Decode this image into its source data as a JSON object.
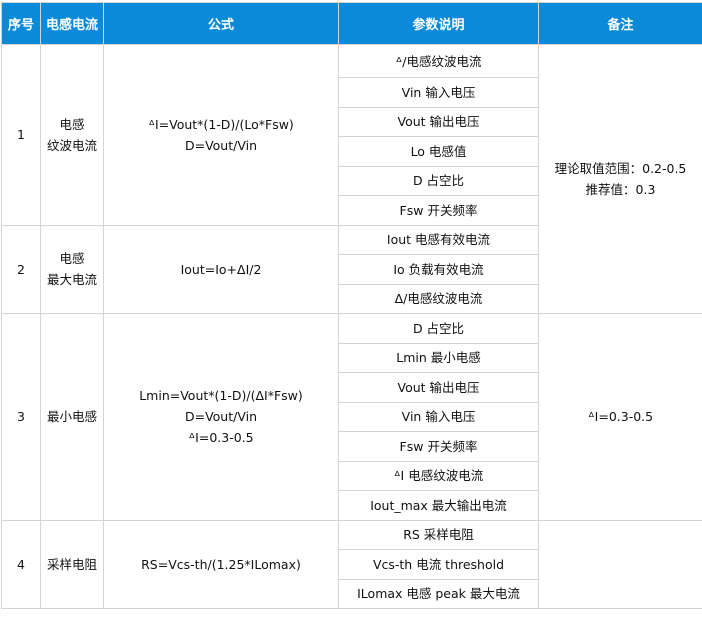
{
  "headers": [
    "序号",
    "电感电流",
    "公式",
    "参数说明",
    "备注"
  ],
  "rows": [
    {
      "no": "1",
      "name": [
        "电感",
        "纹波电流"
      ],
      "formula": [
        "ᐞI=Vout*(1-D)/(Lo*Fsw)",
        "D=Vout/Vin"
      ],
      "params": [
        "ᐞ/电感纹波电流",
        "Vin  输入电压",
        "Vout  输出电压",
        "Lo  电感值",
        "D  占空比",
        "Fsw 开关频率"
      ],
      "note": [
        "理论取值范围：0.2-0.5",
        "推荐值：0.3"
      ]
    },
    {
      "no": "2",
      "name": [
        "电感",
        "最大电流"
      ],
      "formula": [
        "Iout=Io+ΔI/2"
      ],
      "params": [
        "Iout  电感有效电流",
        "Io  负载有效电流",
        "Δ/电感纹波电流"
      ]
    },
    {
      "no": "3",
      "name": [
        "最小电感"
      ],
      "formula": [
        "Lmin=Vout*(1-D)/(ΔI*Fsw)",
        "D=Vout/Vin",
        "ᐞI=0.3-0.5"
      ],
      "params": [
        "D  占空比",
        "Lmin  最小电感",
        "Vout  输出电压",
        "Vin  输入电压",
        "Fsw  开关频率",
        "ᐞI  电感纹波电流",
        "Iout_max  最大输出电流"
      ],
      "note": [
        "ᐞI=0.3-0.5"
      ]
    },
    {
      "no": "4",
      "name": [
        "采样电阻"
      ],
      "formula": [
        "RS=Vcs-th/(1.25*ILomax)"
      ],
      "params": [
        "RS  采样电阻",
        "Vcs-th  电流 threshold",
        "ILomax  电感 peak 最大电流"
      ]
    }
  ],
  "colors": {
    "header": "#0a8ad8",
    "border": "#d4d4d4"
  }
}
